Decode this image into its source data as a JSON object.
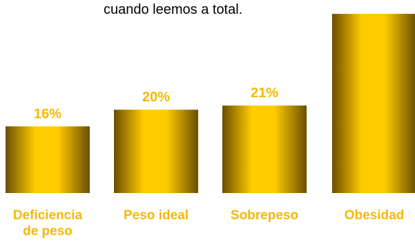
{
  "header": {
    "subtitle": "cuando leemos a total."
  },
  "colors": {
    "bar_edge": "#7a5a00",
    "bar_center": "#ffd000",
    "label": "#f5b800"
  },
  "chart_data": {
    "type": "bar",
    "title": "",
    "categories": [
      [
        "Deficiencia",
        "de peso"
      ],
      [
        "Peso ideal"
      ],
      [
        "Sobrepeso"
      ],
      [
        "Obesidad"
      ]
    ],
    "values": [
      16,
      20,
      21,
      43
    ],
    "value_labels": [
      "16%",
      "20%",
      "21%",
      ""
    ],
    "unit": "%",
    "ylim": [
      0,
      45
    ],
    "grid": false,
    "legend": "none"
  }
}
